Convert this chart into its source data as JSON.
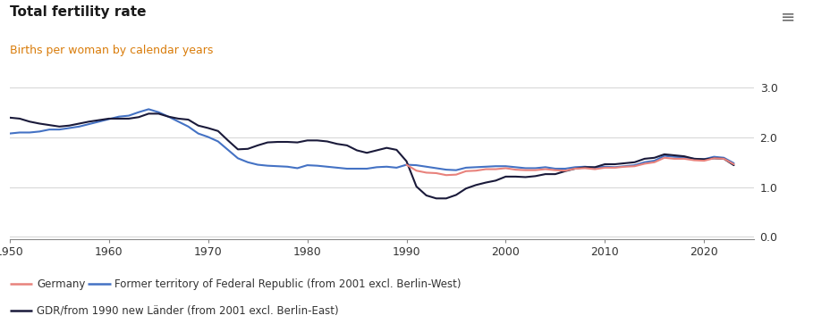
{
  "title": "Total fertility rate",
  "subtitle": "Births per woman by calendar years",
  "subtitle_color": "#d97c0a",
  "background_color": "#ffffff",
  "grid_color": "#d8d8d8",
  "ylim": [
    -0.05,
    3.3
  ],
  "yticks": [
    0.0,
    1.0,
    2.0,
    3.0
  ],
  "xlim": [
    1950,
    2025
  ],
  "xticks": [
    1950,
    1960,
    1970,
    1980,
    1990,
    2000,
    2010,
    2020
  ],
  "legend": [
    {
      "label": "Germany",
      "color": "#e8827c",
      "lw": 1.5
    },
    {
      "label": "Former territory of Federal Republic (from 2001 excl. Berlin-West)",
      "color": "#4472c4",
      "lw": 1.5
    },
    {
      "label": "GDR/from 1990 new Länder (from 2001 excl. Berlin-East)",
      "color": "#1a1a3a",
      "lw": 1.5
    }
  ],
  "germany": {
    "years": [
      1990,
      1991,
      1992,
      1993,
      1994,
      1995,
      1996,
      1997,
      1998,
      1999,
      2000,
      2001,
      2002,
      2003,
      2004,
      2005,
      2006,
      2007,
      2008,
      2009,
      2010,
      2011,
      2012,
      2013,
      2014,
      2015,
      2016,
      2017,
      2018,
      2019,
      2020,
      2021,
      2022,
      2023
    ],
    "values": [
      1.45,
      1.33,
      1.29,
      1.28,
      1.24,
      1.25,
      1.32,
      1.33,
      1.36,
      1.36,
      1.38,
      1.35,
      1.34,
      1.34,
      1.36,
      1.34,
      1.33,
      1.37,
      1.38,
      1.36,
      1.39,
      1.39,
      1.41,
      1.42,
      1.47,
      1.5,
      1.59,
      1.57,
      1.57,
      1.54,
      1.53,
      1.58,
      1.57,
      1.46
    ]
  },
  "west": {
    "years": [
      1950,
      1951,
      1952,
      1953,
      1954,
      1955,
      1956,
      1957,
      1958,
      1959,
      1960,
      1961,
      1962,
      1963,
      1964,
      1965,
      1966,
      1967,
      1968,
      1969,
      1970,
      1971,
      1972,
      1973,
      1974,
      1975,
      1976,
      1977,
      1978,
      1979,
      1980,
      1981,
      1982,
      1983,
      1984,
      1985,
      1986,
      1987,
      1988,
      1989,
      1990,
      1991,
      1992,
      1993,
      1994,
      1995,
      1996,
      1997,
      1998,
      1999,
      2000,
      2001,
      2002,
      2003,
      2004,
      2005,
      2006,
      2007,
      2008,
      2009,
      2010,
      2011,
      2012,
      2013,
      2014,
      2015,
      2016,
      2017,
      2018,
      2019,
      2020,
      2021,
      2022,
      2023
    ],
    "values": [
      2.08,
      2.1,
      2.1,
      2.12,
      2.16,
      2.16,
      2.19,
      2.22,
      2.27,
      2.32,
      2.37,
      2.42,
      2.44,
      2.51,
      2.57,
      2.51,
      2.42,
      2.32,
      2.22,
      2.08,
      2.01,
      1.92,
      1.75,
      1.58,
      1.5,
      1.45,
      1.43,
      1.42,
      1.41,
      1.38,
      1.44,
      1.43,
      1.41,
      1.39,
      1.37,
      1.37,
      1.37,
      1.4,
      1.41,
      1.39,
      1.45,
      1.44,
      1.41,
      1.38,
      1.35,
      1.34,
      1.39,
      1.4,
      1.41,
      1.42,
      1.42,
      1.4,
      1.38,
      1.38,
      1.4,
      1.37,
      1.37,
      1.4,
      1.41,
      1.39,
      1.41,
      1.4,
      1.42,
      1.44,
      1.5,
      1.53,
      1.63,
      1.61,
      1.6,
      1.57,
      1.56,
      1.61,
      1.59,
      1.48
    ]
  },
  "east": {
    "years": [
      1950,
      1951,
      1952,
      1953,
      1954,
      1955,
      1956,
      1957,
      1958,
      1959,
      1960,
      1961,
      1962,
      1963,
      1964,
      1965,
      1966,
      1967,
      1968,
      1969,
      1970,
      1971,
      1972,
      1973,
      1974,
      1975,
      1976,
      1977,
      1978,
      1979,
      1980,
      1981,
      1982,
      1983,
      1984,
      1985,
      1986,
      1987,
      1988,
      1989,
      1990,
      1991,
      1992,
      1993,
      1994,
      1995,
      1996,
      1997,
      1998,
      1999,
      2000,
      2001,
      2002,
      2003,
      2004,
      2005,
      2006,
      2007,
      2008,
      2009,
      2010,
      2011,
      2012,
      2013,
      2014,
      2015,
      2016,
      2017,
      2018,
      2019,
      2020,
      2021,
      2022,
      2023
    ],
    "values": [
      2.4,
      2.38,
      2.32,
      2.28,
      2.25,
      2.22,
      2.24,
      2.28,
      2.32,
      2.35,
      2.38,
      2.38,
      2.38,
      2.41,
      2.48,
      2.48,
      2.42,
      2.38,
      2.36,
      2.24,
      2.19,
      2.13,
      1.94,
      1.76,
      1.77,
      1.84,
      1.9,
      1.91,
      1.91,
      1.9,
      1.94,
      1.94,
      1.92,
      1.87,
      1.84,
      1.74,
      1.69,
      1.74,
      1.79,
      1.75,
      1.52,
      1.01,
      0.83,
      0.77,
      0.77,
      0.84,
      0.97,
      1.04,
      1.09,
      1.13,
      1.21,
      1.21,
      1.2,
      1.22,
      1.26,
      1.26,
      1.32,
      1.37,
      1.4,
      1.4,
      1.46,
      1.46,
      1.48,
      1.5,
      1.57,
      1.59,
      1.66,
      1.64,
      1.62,
      1.57,
      1.56,
      1.58,
      1.57,
      1.44
    ]
  }
}
